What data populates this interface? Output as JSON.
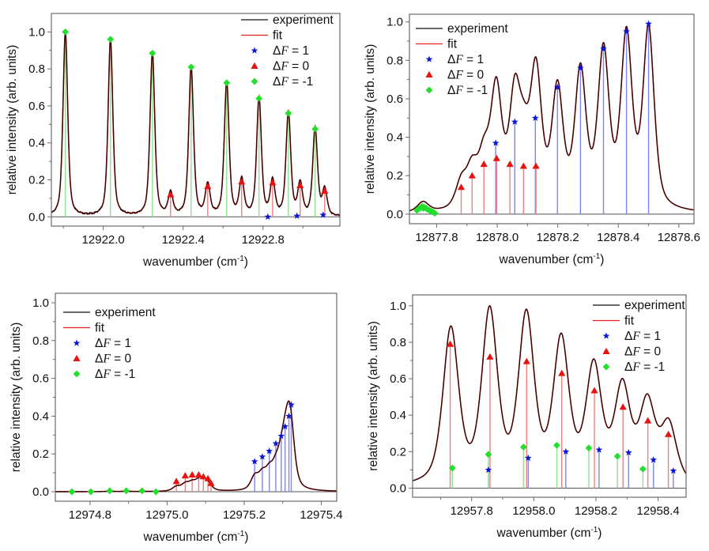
{
  "figure": {
    "description": "Four-panel hyperfine spectra: experiment vs fit with stick spectra"
  },
  "legend_labels": {
    "experiment": "experiment",
    "fit": "fit",
    "df1": "ΔF = 1",
    "df0": "ΔF = 0",
    "dfm1": "ΔF = -1"
  },
  "colors": {
    "experiment": "#000000",
    "fit": "#e8211f",
    "df1": "#0a17d6",
    "df0": "#e8130f",
    "dfm1": "#22e02a",
    "df1_stick": "#7f86ef",
    "df0_stick": "#f08080",
    "dfm1_stick": "#8fe38f",
    "frame": "#6b6b6b"
  },
  "chart_data": [
    {
      "id": "top-left",
      "type": "line",
      "title": "",
      "xlabel": "wavenumber (cm",
      "xlabel_sup": "-1",
      "xlabel_end": ")",
      "ylabel": "relative intensity (arb. units)",
      "xlim": [
        12921.74,
        12923.185
      ],
      "ylim": [
        -0.05,
        1.1
      ],
      "xticks": [
        12922.0,
        12922.4,
        12922.8
      ],
      "xtick_labels": [
        "12922.0",
        "12922.4",
        "12922.8"
      ],
      "xminor": [
        12921.8,
        12922.2,
        12922.6,
        12923.0
      ],
      "yticks": [
        0.0,
        0.2,
        0.4,
        0.6,
        0.8,
        1.0
      ],
      "ytick_labels": [
        "0.0",
        "0.2",
        "0.4",
        "0.6",
        "0.8",
        "1.0"
      ],
      "yminor": [
        0.1,
        0.3,
        0.5,
        0.7,
        0.9
      ],
      "legend": "top-right",
      "linewidth_cm": 0.014,
      "experiment_peaks": {
        "x": [
          12921.81,
          12922.036,
          12922.246,
          12922.337,
          12922.44,
          12922.523,
          12922.618,
          12922.693,
          12922.78,
          12922.848,
          12922.927,
          12922.986,
          12923.061,
          12923.109
        ],
        "y": [
          1.0,
          0.96,
          0.885,
          0.12,
          0.81,
          0.165,
          0.725,
          0.19,
          0.64,
          0.185,
          0.56,
          0.17,
          0.475,
          0.14
        ]
      },
      "series": [
        {
          "name": "ΔF = 1",
          "key": "df1",
          "x": [
            12922.824,
            12922.97,
            12923.101
          ],
          "y": [
            0.0,
            0.005,
            0.01
          ]
        },
        {
          "name": "ΔF = 0",
          "key": "df0",
          "x": [
            12922.337,
            12922.523,
            12922.693,
            12922.848,
            12922.986,
            12923.109
          ],
          "y": [
            0.12,
            0.165,
            0.19,
            0.185,
            0.17,
            0.14
          ]
        },
        {
          "name": "ΔF = -1",
          "key": "dfm1",
          "x": [
            12921.81,
            12922.036,
            12922.246,
            12922.44,
            12922.618,
            12922.78,
            12922.927,
            12923.061
          ],
          "y": [
            1.0,
            0.96,
            0.885,
            0.81,
            0.725,
            0.64,
            0.56,
            0.475
          ]
        }
      ]
    },
    {
      "id": "top-right",
      "type": "line",
      "title": "",
      "xlabel": "wavenumber (cm",
      "xlabel_sup": "-1",
      "xlabel_end": ")",
      "ylabel": "relative intensity (arb. units)",
      "xlim": [
        12877.71,
        12878.65
      ],
      "ylim": [
        -0.05,
        1.04
      ],
      "xticks": [
        12877.8,
        12878.0,
        12878.2,
        12878.4,
        12878.6
      ],
      "xtick_labels": [
        "12877.8",
        "12878.0",
        "12878.2",
        "12878.4",
        "12878.6"
      ],
      "xminor": [
        12877.9,
        12878.1,
        12878.3,
        12878.5
      ],
      "yticks": [
        0.0,
        0.2,
        0.4,
        0.6,
        0.8,
        1.0
      ],
      "ytick_labels": [
        "0.0",
        "0.2",
        "0.4",
        "0.6",
        "0.8",
        "1.0"
      ],
      "yminor": [
        0.1,
        0.3,
        0.5,
        0.7,
        0.9
      ],
      "legend": "top-left",
      "linewidth_cm": 0.022,
      "experiment_peaks": {
        "x": [
          12877.755,
          12877.881,
          12877.917,
          12877.956,
          12877.997,
          12878.058,
          12878.088,
          12878.128,
          12878.199,
          12878.275,
          12878.351,
          12878.427,
          12878.5
        ],
        "y": [
          0.055,
          0.14,
          0.2,
          0.255,
          0.64,
          0.58,
          0.27,
          0.73,
          0.64,
          0.74,
          0.85,
          0.94,
          0.99
        ]
      },
      "series": [
        {
          "name": "ΔF = 1",
          "key": "df1",
          "x": [
            12877.995,
            12878.058,
            12878.126,
            12878.199,
            12878.275,
            12878.351,
            12878.427,
            12878.5
          ],
          "y": [
            0.37,
            0.48,
            0.5,
            0.66,
            0.76,
            0.86,
            0.95,
            0.99
          ]
        },
        {
          "name": "ΔF = 0",
          "key": "df0",
          "x": [
            12877.881,
            12877.917,
            12877.956,
            12877.998,
            12878.042,
            12878.087,
            12878.128
          ],
          "y": [
            0.14,
            0.2,
            0.26,
            0.29,
            0.26,
            0.25,
            0.25
          ]
        },
        {
          "name": "ΔF = -1",
          "key": "dfm1",
          "cluster": true,
          "x": [
            12877.735,
            12877.742,
            12877.748,
            12877.752,
            12877.756,
            12877.76,
            12877.765,
            12877.77,
            12877.776,
            12877.782,
            12877.788,
            12877.794
          ],
          "y": [
            0.02,
            0.03,
            0.035,
            0.04,
            0.03,
            0.035,
            0.03,
            0.025,
            0.02,
            0.015,
            0.01,
            0.005
          ]
        }
      ]
    },
    {
      "id": "bottom-left",
      "type": "line",
      "title": "",
      "xlabel": "wavenumber (cm",
      "xlabel_sup": "-1",
      "xlabel_end": ")",
      "ylabel": "relative intensity (arb. units)",
      "xlim": [
        12974.71,
        12975.44
      ],
      "ylim": [
        -0.05,
        1.05
      ],
      "xticks": [
        12974.8,
        12975.0,
        12975.2,
        12975.4
      ],
      "xtick_labels": [
        "12974.8",
        "12975.0",
        "12975.2",
        "12975.4"
      ],
      "xminor": [
        12974.9,
        12975.1,
        12975.3
      ],
      "yticks": [
        0.0,
        0.2,
        0.4,
        0.6,
        0.8,
        1.0
      ],
      "ytick_labels": [
        "0.0",
        "0.2",
        "0.4",
        "0.6",
        "0.8",
        "1.0"
      ],
      "yminor": [
        0.1,
        0.3,
        0.5,
        0.7,
        0.9
      ],
      "legend": "top-left",
      "linewidth_cm": 0.012,
      "experiment_peaks": {
        "x": [
          12974.851,
          12974.894,
          12975.024,
          12975.047,
          12975.065,
          12975.082,
          12975.094,
          12975.106,
          12975.227,
          12975.247,
          12975.265,
          12975.282,
          12975.296,
          12975.306,
          12975.316,
          12975.322
        ],
        "y": [
          0.005,
          0.005,
          0.05,
          0.075,
          0.08,
          0.085,
          0.08,
          0.07,
          0.15,
          0.16,
          0.18,
          0.2,
          0.24,
          0.32,
          0.48,
          0.4
        ]
      },
      "series": [
        {
          "name": "ΔF = 1",
          "key": "df1",
          "x": [
            12975.227,
            12975.247,
            12975.265,
            12975.282,
            12975.296,
            12975.306,
            12975.316,
            12975.322
          ],
          "y": [
            0.16,
            0.185,
            0.215,
            0.255,
            0.295,
            0.345,
            0.4,
            0.46
          ]
        },
        {
          "name": "ΔF = 0",
          "key": "df0",
          "x": [
            12975.024,
            12975.047,
            12975.065,
            12975.082,
            12975.094,
            12975.106,
            12975.114
          ],
          "y": [
            0.055,
            0.085,
            0.09,
            0.09,
            0.08,
            0.07,
            0.045
          ]
        },
        {
          "name": "ΔF = -1",
          "key": "dfm1",
          "x": [
            12974.753,
            12974.802,
            12974.851,
            12974.894,
            12974.935,
            12974.971
          ],
          "y": [
            0.0,
            0.0,
            0.005,
            0.005,
            0.005,
            0.0
          ]
        }
      ]
    },
    {
      "id": "bottom-right",
      "type": "line",
      "title": "",
      "xlabel": "wavenumber (cm",
      "xlabel_sup": "-1",
      "xlabel_end": ")",
      "ylabel": "relative intensity (arb. units)",
      "xlim": [
        12957.61,
        12958.49
      ],
      "ylim": [
        -0.05,
        1.06
      ],
      "xticks": [
        12957.8,
        12958.0,
        12958.2,
        12958.4
      ],
      "xtick_labels": [
        "12957.8",
        "12958.0",
        "12958.2",
        "12958.4"
      ],
      "xminor": [
        12957.7,
        12957.9,
        12958.1,
        12958.3
      ],
      "yticks": [
        0.0,
        0.2,
        0.4,
        0.6,
        0.8,
        1.0
      ],
      "ytick_labels": [
        "0.0",
        "0.2",
        "0.4",
        "0.6",
        "0.8",
        "1.0"
      ],
      "yminor": [
        0.1,
        0.3,
        0.5,
        0.7,
        0.9
      ],
      "legend": "top-right",
      "linewidth_cm": 0.03,
      "experiment_peaks": {
        "x": [
          12957.733,
          12957.858,
          12957.976,
          12958.088,
          12958.193,
          12958.285,
          12958.365,
          12958.434
        ],
        "y": [
          0.91,
          1.0,
          0.97,
          0.825,
          0.67,
          0.55,
          0.46,
          0.34
        ]
      },
      "series": [
        {
          "name": "ΔF = 1",
          "key": "df1",
          "x": [
            12957.854,
            12957.982,
            12958.103,
            12958.21,
            12958.305,
            12958.385,
            12958.449
          ],
          "y": [
            0.1,
            0.165,
            0.2,
            0.21,
            0.195,
            0.155,
            0.095
          ]
        },
        {
          "name": "ΔF = 0",
          "key": "df0",
          "x": [
            12957.731,
            12957.859,
            12957.977,
            12958.09,
            12958.195,
            12958.287,
            12958.367,
            12958.433
          ],
          "y": [
            0.79,
            0.72,
            0.695,
            0.63,
            0.535,
            0.445,
            0.37,
            0.295
          ]
        },
        {
          "name": "ΔF = -1",
          "key": "dfm1",
          "x": [
            12957.738,
            12957.854,
            12957.967,
            12958.074,
            12958.177,
            12958.269,
            12958.351
          ],
          "y": [
            0.11,
            0.185,
            0.225,
            0.235,
            0.22,
            0.175,
            0.105
          ]
        }
      ]
    }
  ]
}
